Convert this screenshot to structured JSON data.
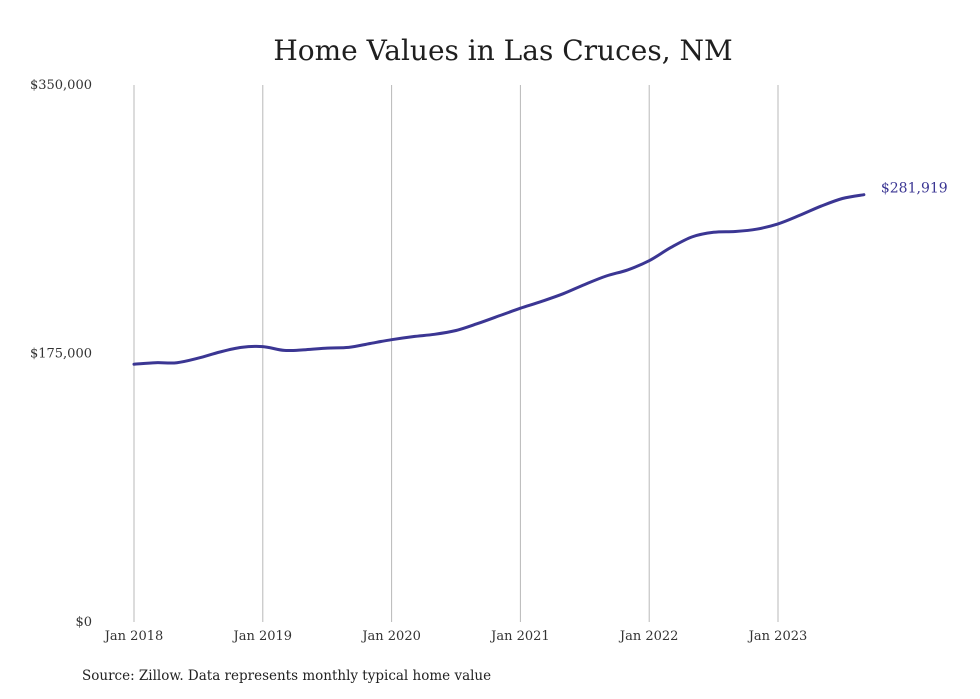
{
  "chart_data": {
    "type": "line",
    "title": "Home Values in Las Cruces, NM",
    "xlabel": "",
    "ylabel": "",
    "ylim": [
      0,
      350000
    ],
    "y_ticks": [
      {
        "value": 0,
        "label": "$0"
      },
      {
        "value": 175000,
        "label": "$175,000"
      },
      {
        "value": 350000,
        "label": "$350,000"
      }
    ],
    "x_ticks": [
      {
        "value": "2018-01",
        "label": "Jan 2018"
      },
      {
        "value": "2019-01",
        "label": "Jan 2019"
      },
      {
        "value": "2020-01",
        "label": "Jan 2020"
      },
      {
        "value": "2021-01",
        "label": "Jan 2021"
      },
      {
        "value": "2022-01",
        "label": "Jan 2022"
      },
      {
        "value": "2023-01",
        "label": "Jan 2023"
      }
    ],
    "grid": {
      "vertical": true,
      "horizontal": false
    },
    "series_color": "#3b3693",
    "series": [
      {
        "x": [
          "2018-01",
          "2018-03",
          "2018-05",
          "2018-07",
          "2018-09",
          "2018-11",
          "2019-01",
          "2019-03",
          "2019-05",
          "2019-07",
          "2019-09",
          "2019-11",
          "2020-01",
          "2020-03",
          "2020-05",
          "2020-07",
          "2020-09",
          "2020-11",
          "2021-01",
          "2021-03",
          "2021-05",
          "2021-07",
          "2021-09",
          "2021-11",
          "2022-01",
          "2022-03",
          "2022-05",
          "2022-07",
          "2022-09",
          "2022-11",
          "2023-01",
          "2023-03",
          "2023-05",
          "2023-07",
          "2023-09"
        ],
        "values": [
          168000,
          169000,
          169000,
          172000,
          176000,
          179000,
          179500,
          177000,
          177500,
          178500,
          179000,
          181500,
          184000,
          186000,
          187500,
          190000,
          194500,
          199500,
          204500,
          209000,
          214000,
          220000,
          225500,
          229500,
          235500,
          244000,
          251000,
          254000,
          254500,
          256000,
          259500,
          265000,
          271000,
          276000,
          278500
        ],
        "end_label": "$281,919"
      }
    ]
  },
  "footer": {
    "source": "Source: Zillow. Data represents monthly typical home value"
  }
}
